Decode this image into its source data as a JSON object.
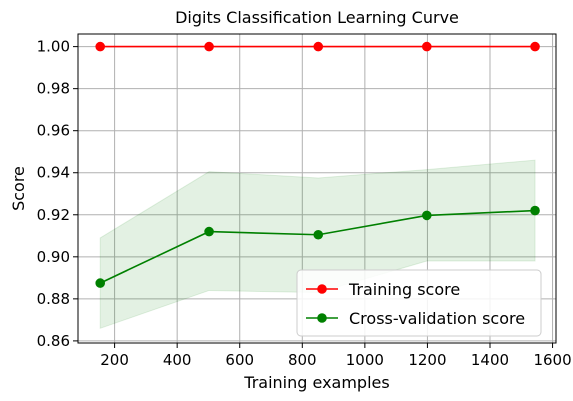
{
  "chart_data": {
    "type": "line",
    "title": "Digits Classification Learning Curve",
    "xlabel": "Training examples",
    "ylabel": "Score",
    "xlim": [
      83,
      1611
    ],
    "ylim": [
      0.859,
      1.006
    ],
    "xticks": [
      200,
      400,
      600,
      800,
      1000,
      1200,
      1400,
      1600
    ],
    "yticks": [
      0.86,
      0.88,
      0.9,
      0.92,
      0.94,
      0.96,
      0.98,
      1.0
    ],
    "grid": true,
    "legend_position": "lower-right",
    "x": [
      154,
      502,
      851,
      1198,
      1544
    ],
    "series": [
      {
        "name": "Training score",
        "color": "#ff0000",
        "marker": "circle",
        "values": [
          1.0,
          1.0,
          1.0,
          1.0,
          1.0
        ],
        "band_lower": [
          1.0,
          1.0,
          1.0,
          1.0,
          1.0
        ],
        "band_upper": [
          1.0,
          1.0,
          1.0,
          1.0,
          1.0
        ]
      },
      {
        "name": "Cross-validation score",
        "color": "#008000",
        "marker": "circle",
        "values": [
          0.8875,
          0.912,
          0.9105,
          0.9197,
          0.922
        ],
        "band_lower": [
          0.866,
          0.884,
          0.883,
          0.898,
          0.898
        ],
        "band_upper": [
          0.909,
          0.9405,
          0.9375,
          0.9415,
          0.946
        ],
        "band_color": "#008000"
      }
    ]
  }
}
